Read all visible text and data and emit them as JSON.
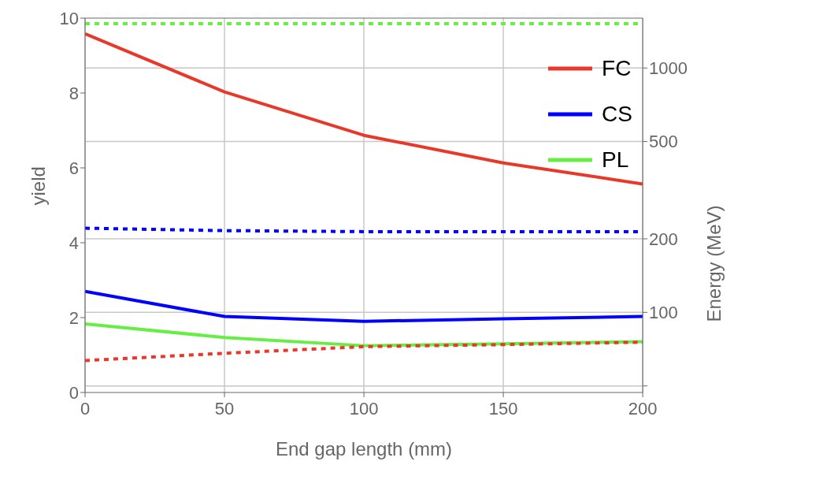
{
  "chart_data": {
    "type": "line",
    "xlabel": "End gap length (mm)",
    "ylabel": "yield",
    "y2label": "Energy (MeV)",
    "x": [
      0,
      50,
      100,
      150,
      200
    ],
    "series": [
      {
        "name": "FC",
        "color": "#e8382a",
        "values": [
          9.58,
          8.03,
          6.87,
          6.13,
          5.57
        ]
      },
      {
        "name": "CS",
        "color": "#0000ff",
        "values": [
          2.7,
          2.03,
          1.9,
          1.97,
          2.03
        ]
      },
      {
        "name": "PL",
        "color": "#66ee44",
        "values": [
          1.83,
          1.47,
          1.25,
          1.3,
          1.36
        ]
      },
      {
        "color": "#e8382a",
        "axis": "y2",
        "line_style": "dotted",
        "values": [
          63.5,
          68,
          72.4,
          73.8,
          75.5
        ]
      },
      {
        "color": "#0000ff",
        "axis": "y2",
        "line_style": "dotted",
        "values": [
          221,
          216,
          214,
          214,
          214
        ]
      },
      {
        "color": "#66ee44",
        "axis": "y2",
        "line_style": "dotted",
        "values": [
          1520,
          1520,
          1520,
          1520,
          1520
        ]
      }
    ],
    "xlim": [
      0,
      200
    ],
    "xticks": [
      0,
      50,
      100,
      150,
      200
    ],
    "ylim": [
      0,
      10
    ],
    "yticks": [
      0,
      2,
      4,
      6,
      8,
      10
    ],
    "y2lim": [
      47,
      1600
    ],
    "y2ticks": [
      {
        "value": 50,
        "label": null
      },
      100,
      200,
      500,
      1000
    ],
    "log": "y2",
    "grid": true,
    "legend": "top right",
    "line_style": "solid",
    "marker": "none"
  }
}
